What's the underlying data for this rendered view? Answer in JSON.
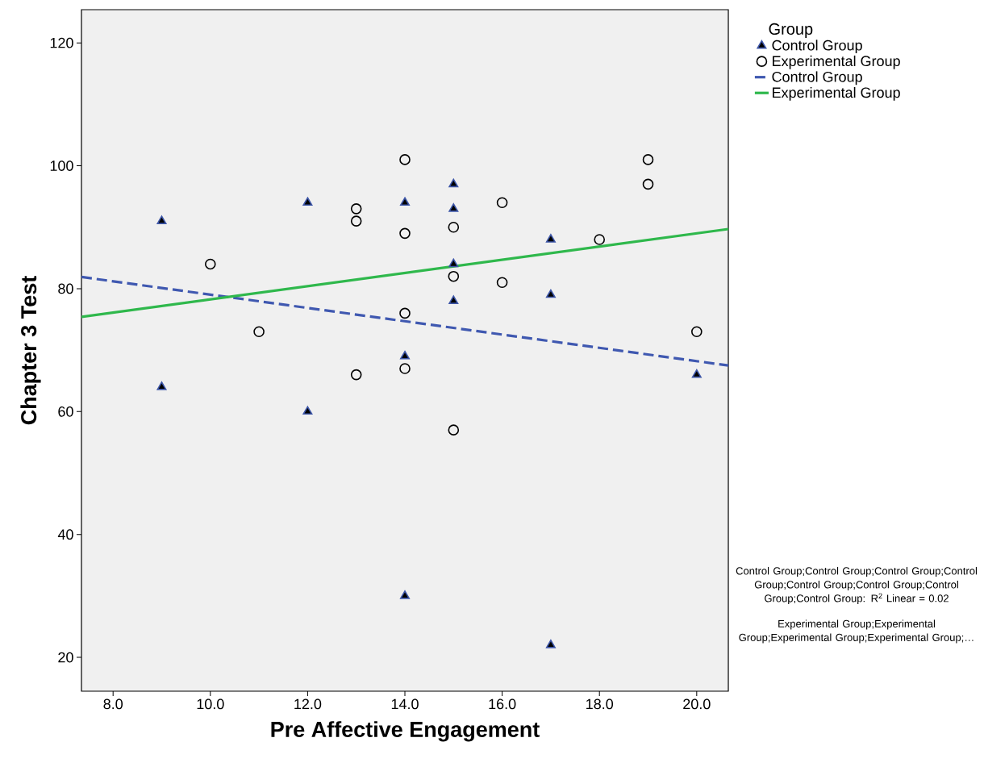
{
  "chart_data": {
    "type": "scatter",
    "xlabel": "Pre Affective Engagement",
    "ylabel": "Chapter 3 Test",
    "legend_title": "Group",
    "xlim": [
      7.35,
      20.65
    ],
    "ylim": [
      14.5,
      125.4
    ],
    "xticks": [
      {
        "value": 8,
        "label": "8.0"
      },
      {
        "value": 10,
        "label": "10.0"
      },
      {
        "value": 12,
        "label": "12.0"
      },
      {
        "value": 14,
        "label": "14.0"
      },
      {
        "value": 16,
        "label": "16.0"
      },
      {
        "value": 18,
        "label": "18.0"
      },
      {
        "value": 20,
        "label": "20.0"
      }
    ],
    "yticks": [
      20,
      40,
      60,
      80,
      100,
      120
    ],
    "grid": false,
    "legend": "top right",
    "series": [
      {
        "name": "Control Group",
        "marker": "triangle",
        "color": "#3d56a8",
        "x": [
          9,
          9,
          12,
          12,
          14,
          14,
          14,
          15,
          15,
          15,
          15,
          17,
          17,
          17,
          20
        ],
        "values": [
          91,
          64,
          94,
          60,
          94,
          69,
          30,
          97,
          93,
          84,
          78,
          88,
          79,
          22,
          66
        ]
      },
      {
        "name": "Experimental Group",
        "marker": "circle",
        "color": "#000000",
        "x": [
          10,
          11,
          13,
          13,
          13,
          14,
          14,
          14,
          14,
          15,
          15,
          15,
          16,
          16,
          18,
          19,
          19,
          20
        ],
        "values": [
          84,
          73,
          93,
          91,
          66,
          101,
          89,
          76,
          67,
          90,
          82,
          57,
          94,
          81,
          88,
          101,
          97,
          73
        ]
      },
      {
        "name": "Control Group",
        "type": "line",
        "line_style": "dashed",
        "color": "#3f58b0",
        "x": [
          7.35,
          20.65
        ],
        "values": [
          81.9,
          67.5
        ]
      },
      {
        "name": "Experimental Group",
        "type": "line",
        "line_style": "solid",
        "color": "#2fb84c",
        "x": [
          7.35,
          20.65
        ],
        "values": [
          75.4,
          89.7
        ]
      }
    ],
    "annotations": [
      "Control Group;Control Group;Control Group;Control Group;Control Group;Control Group;Control Group;Control Group: R$^{2}$ Linear = 0.02",
      "Experimental Group;Experimental Group;Experimental Group;Experimental Group;…"
    ]
  }
}
